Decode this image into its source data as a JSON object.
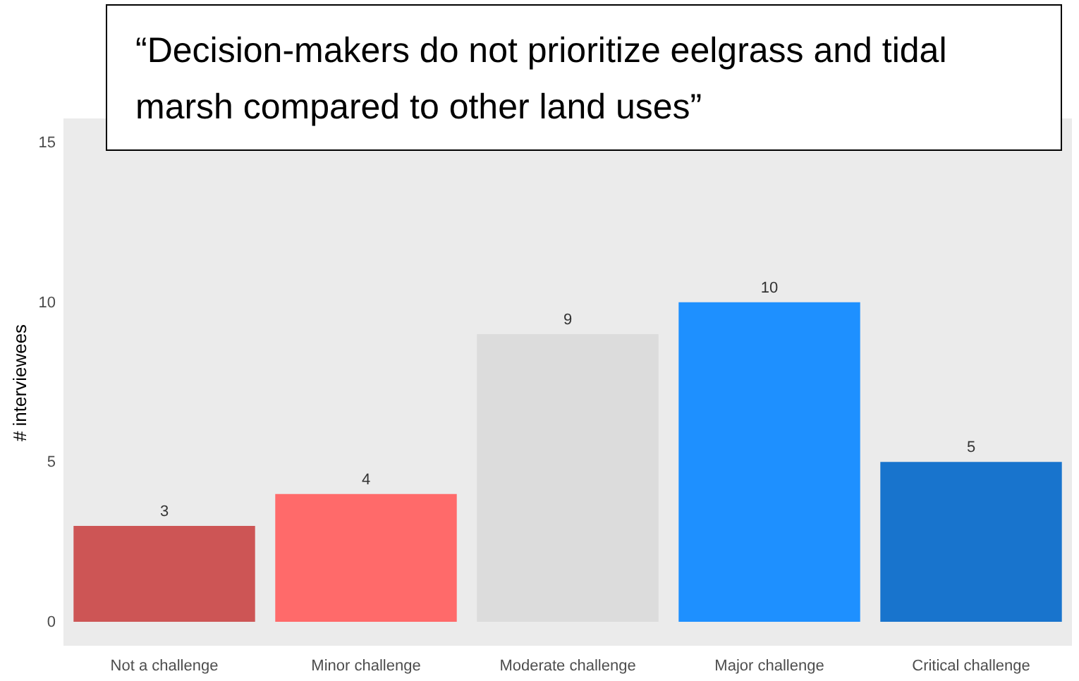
{
  "chart_data": {
    "type": "bar",
    "title": "“Decision-makers do not prioritize eelgrass and tidal marsh compared to other land uses”",
    "ylabel": "# interviewees",
    "categories": [
      "Not a challenge",
      "Minor challenge",
      "Moderate challenge",
      "Major challenge",
      "Critical challenge"
    ],
    "values": [
      3,
      4,
      9,
      10,
      5
    ],
    "colors": [
      "#cd5555",
      "#ff6a6a",
      "#dcdcdc",
      "#1e90ff",
      "#1874cd"
    ],
    "ylim": [
      -0.75,
      15.75
    ],
    "yticks": [
      0,
      5,
      10,
      15
    ],
    "data_labels": true
  }
}
